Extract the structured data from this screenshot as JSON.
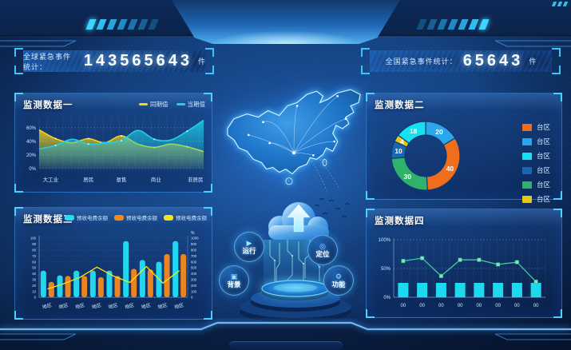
{
  "colors": {
    "accent": "#39c6ff",
    "panel_border": "#3e8ee0",
    "background": "#0e3066"
  },
  "header": {
    "left_counter": {
      "label": "全球紧急事件统计：",
      "value": "143565643",
      "unit": "件"
    },
    "right_counter": {
      "label": "全国紧急事件统计：",
      "value": "65643",
      "unit": "件"
    }
  },
  "panels": {
    "p1": {
      "title": "监测数据一"
    },
    "p2": {
      "title": "监测数据二"
    },
    "p3": {
      "title": "监测数据三"
    },
    "p4": {
      "title": "监测数据四"
    }
  },
  "center": {
    "buttons": [
      {
        "name": "run",
        "label": "运行",
        "icon": "play-icon",
        "glyph": "▶"
      },
      {
        "name": "locate",
        "label": "定位",
        "icon": "locate-icon",
        "glyph": "◎"
      },
      {
        "name": "background",
        "label": "背景",
        "icon": "background-icon",
        "glyph": "▣"
      },
      {
        "name": "function",
        "label": "功能",
        "icon": "gear-icon",
        "glyph": "⚙"
      }
    ]
  },
  "chart_data": [
    {
      "type": "area",
      "title": "监测数据一",
      "legend_position": "top-right",
      "categories": [
        "大工业",
        "居民",
        "趸售",
        "商业",
        "非居民"
      ],
      "yticks": [
        0,
        20,
        40,
        60
      ],
      "ytick_suffix": "%",
      "ylim": [
        0,
        75
      ],
      "grid": true,
      "series": [
        {
          "name": "同期值",
          "color": "#f5d515",
          "values": [
            57,
            44,
            38,
            44,
            38,
            48,
            36,
            31,
            36,
            32,
            25
          ]
        },
        {
          "name": "当期值",
          "color": "#1ed0e8",
          "values": [
            29,
            34,
            43,
            36,
            38,
            41,
            56,
            43,
            42,
            55,
            71
          ]
        }
      ]
    },
    {
      "type": "donut",
      "title": "监测数据二",
      "legend_position": "right",
      "slices": [
        {
          "label": "20",
          "value": 20,
          "color": "#2aa7ea"
        },
        {
          "label": "40",
          "value": 40,
          "color": "#ef6d1c"
        },
        {
          "label": "30",
          "value": 30,
          "color": "#2fb36a"
        },
        {
          "label": "10",
          "value": 10,
          "color": "#1767b3"
        },
        {
          "label": "4",
          "value": 4,
          "color": "#e8c715"
        },
        {
          "label": "18",
          "value": 18,
          "color": "#17e1f0"
        }
      ],
      "legend": [
        {
          "label": "台区",
          "color": "#ef6d1c"
        },
        {
          "label": "台区",
          "color": "#2aa7ea"
        },
        {
          "label": "台区",
          "color": "#17e1f0"
        },
        {
          "label": "台区",
          "color": "#1767b3"
        },
        {
          "label": "台区",
          "color": "#2fb36a"
        },
        {
          "label": "台区",
          "color": "#e8c715"
        }
      ]
    },
    {
      "type": "bar-line",
      "title": "监测数据三",
      "legend_position": "top-right",
      "grid": true,
      "categories": [
        "地区",
        "地区",
        "地区",
        "地区",
        "地区",
        "地区",
        "地区",
        "地区",
        "地区"
      ],
      "left_axis": {
        "min": 0,
        "max": 100,
        "step": 10
      },
      "right_axis": {
        "min": 0,
        "max": 1000,
        "step": 100,
        "unit": "%"
      },
      "legend": [
        {
          "label": "预收电费余额",
          "color": "#21e0f5"
        },
        {
          "label": "预收电费余额",
          "color": "#f5891d"
        },
        {
          "label": "预收电费余额",
          "color": "#f5e41d"
        }
      ],
      "series": [
        {
          "name": "预收电费余额",
          "kind": "bar",
          "color": "#21e0f5",
          "values": [
            45,
            37,
            45,
            45,
            45,
            95,
            63,
            60,
            95
          ]
        },
        {
          "name": "预收电费余额",
          "kind": "bar",
          "color": "#f5891d",
          "values": [
            26,
            36,
            36,
            34,
            36,
            48,
            47,
            73,
            73
          ]
        },
        {
          "name": "预收电费余额",
          "kind": "line",
          "color": "#f5e41d",
          "values": [
            14,
            23,
            34,
            51,
            36,
            25,
            52,
            24,
            45
          ]
        }
      ]
    },
    {
      "type": "line-bar",
      "title": "监测数据四",
      "grid": true,
      "categories": [
        "00",
        "00",
        "00",
        "00",
        "00",
        "00",
        "00",
        "00"
      ],
      "yticks": [
        0,
        50,
        100
      ],
      "ytick_suffix": "%",
      "ylim": [
        0,
        100
      ],
      "series": [
        {
          "name": "bars",
          "kind": "bar",
          "color": "#1ee3f7",
          "values": [
            25,
            25,
            25,
            25,
            25,
            25,
            25,
            25
          ]
        },
        {
          "name": "line",
          "kind": "line",
          "color": "#43c79c",
          "marker_color": "#79e6c0",
          "values": [
            63,
            68,
            37,
            65,
            65,
            57,
            61,
            27
          ]
        }
      ]
    }
  ]
}
